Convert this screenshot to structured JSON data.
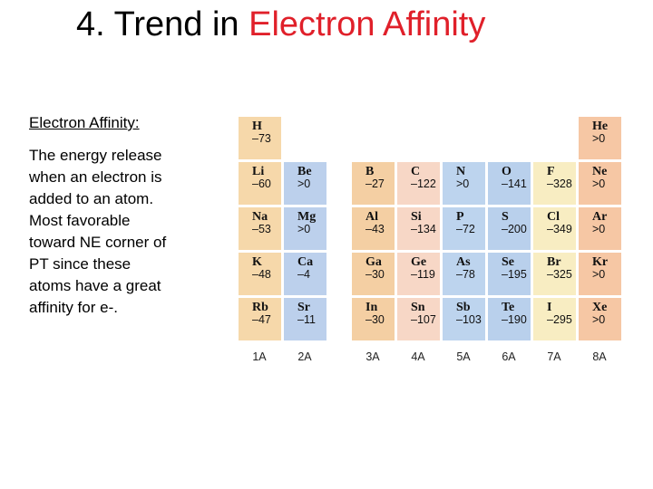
{
  "title": {
    "prefix": "4. Trend in",
    "highlight": "Electron Affinity"
  },
  "definition": {
    "term": "Electron Affinity:",
    "lines": [
      "The energy release",
      "when an electron is",
      "added to an atom.",
      "Most favorable",
      "toward NE corner of",
      "PT since these",
      "atoms have a great",
      "affinity for e-."
    ]
  },
  "table": {
    "groups": [
      "1A",
      "2A",
      "3A",
      "4A",
      "5A",
      "6A",
      "7A",
      "8A"
    ],
    "rows": [
      [
        {
          "symbol": "H",
          "value": "–73"
        },
        null,
        null,
        null,
        null,
        null,
        null,
        {
          "symbol": "He",
          "value": ">0"
        }
      ],
      [
        {
          "symbol": "Li",
          "value": "–60"
        },
        {
          "symbol": "Be",
          "value": ">0"
        },
        {
          "symbol": "B",
          "value": "–27"
        },
        {
          "symbol": "C",
          "value": "–122"
        },
        {
          "symbol": "N",
          "value": ">0"
        },
        {
          "symbol": "O",
          "value": "–141"
        },
        {
          "symbol": "F",
          "value": "–328"
        },
        {
          "symbol": "Ne",
          "value": ">0"
        }
      ],
      [
        {
          "symbol": "Na",
          "value": "–53"
        },
        {
          "symbol": "Mg",
          "value": ">0"
        },
        {
          "symbol": "Al",
          "value": "–43"
        },
        {
          "symbol": "Si",
          "value": "–134"
        },
        {
          "symbol": "P",
          "value": "–72"
        },
        {
          "symbol": "S",
          "value": "–200"
        },
        {
          "symbol": "Cl",
          "value": "–349"
        },
        {
          "symbol": "Ar",
          "value": ">0"
        }
      ],
      [
        {
          "symbol": "K",
          "value": "–48"
        },
        {
          "symbol": "Ca",
          "value": "–4"
        },
        {
          "symbol": "Ga",
          "value": "–30"
        },
        {
          "symbol": "Ge",
          "value": "–119"
        },
        {
          "symbol": "As",
          "value": "–78"
        },
        {
          "symbol": "Se",
          "value": "–195"
        },
        {
          "symbol": "Br",
          "value": "–325"
        },
        {
          "symbol": "Kr",
          "value": ">0"
        }
      ],
      [
        {
          "symbol": "Rb",
          "value": "–47"
        },
        {
          "symbol": "Sr",
          "value": "–11"
        },
        {
          "symbol": "In",
          "value": "–30"
        },
        {
          "symbol": "Sn",
          "value": "–107"
        },
        {
          "symbol": "Sb",
          "value": "–103"
        },
        {
          "symbol": "Te",
          "value": "–190"
        },
        {
          "symbol": "I",
          "value": "–295"
        },
        {
          "symbol": "Xe",
          "value": ">0"
        }
      ]
    ]
  }
}
